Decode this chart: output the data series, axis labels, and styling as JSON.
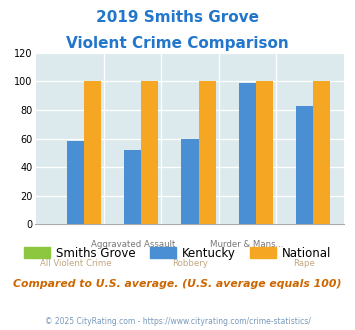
{
  "title_line1": "2019 Smiths Grove",
  "title_line2": "Violent Crime Comparison",
  "categories_top": [
    "",
    "Aggravated Assault",
    "",
    "Murder & Mans...",
    ""
  ],
  "categories_bot": [
    "All Violent Crime",
    "",
    "Robbery",
    "",
    "Rape"
  ],
  "smiths_grove": [
    0,
    0,
    0,
    0,
    0
  ],
  "kentucky": [
    58,
    52,
    60,
    99,
    83
  ],
  "national": [
    100,
    100,
    100,
    100,
    100
  ],
  "color_smiths_grove": "#8dc63f",
  "color_kentucky": "#4a8fd4",
  "color_national": "#f5a623",
  "ylim": [
    0,
    120
  ],
  "yticks": [
    0,
    20,
    40,
    60,
    80,
    100,
    120
  ],
  "background_color": "#ddeaed",
  "title_color": "#2277cc",
  "xlabel_top_color": "#777777",
  "xlabel_bot_color": "#c0a882",
  "footer_text": "Compared to U.S. average. (U.S. average equals 100)",
  "footer_color": "#cc6600",
  "credit_text": "© 2025 CityRating.com - https://www.cityrating.com/crime-statistics/",
  "credit_color": "#7799bb",
  "bar_width": 0.3,
  "legend_labels": [
    "Smiths Grove",
    "Kentucky",
    "National"
  ]
}
